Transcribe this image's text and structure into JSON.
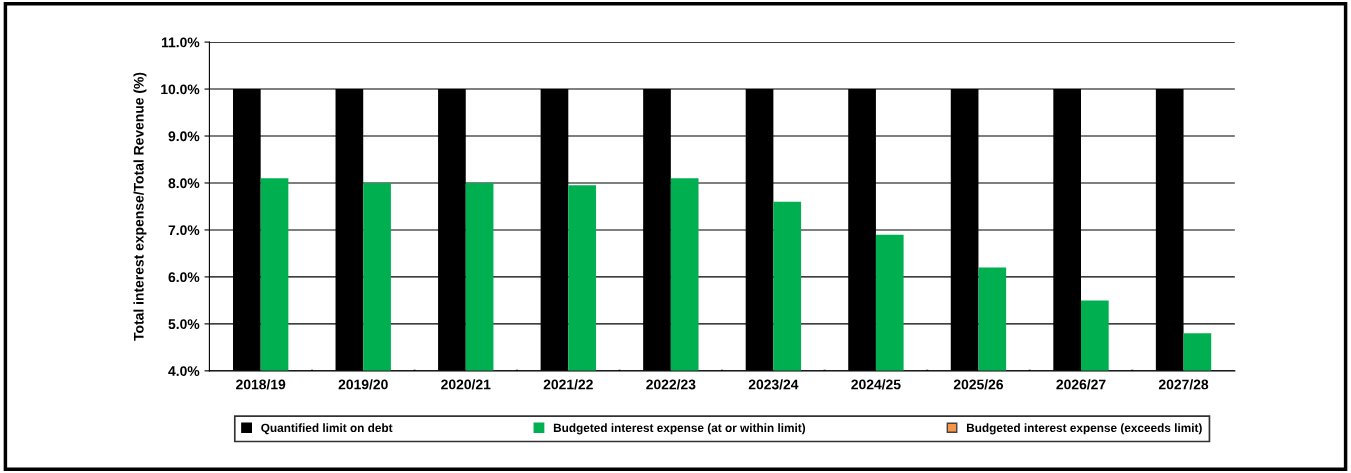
{
  "chart_data": {
    "type": "bar",
    "ylabel": "Total interest expense/Total Revenue (%)",
    "categories": [
      "2018/19",
      "2019/20",
      "2020/21",
      "2021/22",
      "2022/23",
      "2023/24",
      "2024/25",
      "2025/26",
      "2026/27",
      "2027/28"
    ],
    "series": [
      {
        "name": "Quantified limit on debt",
        "color": "#000000",
        "values": [
          10.0,
          10.0,
          10.0,
          10.0,
          10.0,
          10.0,
          10.0,
          10.0,
          10.0,
          10.0
        ]
      },
      {
        "name": "Budgeted interest expense (at or within limit)",
        "color": "#00b050",
        "values": [
          8.1,
          8.0,
          8.0,
          7.95,
          8.1,
          7.6,
          6.9,
          6.2,
          5.5,
          4.8
        ]
      },
      {
        "name": "Budgeted interest expense (exceeds limit)",
        "color": "#f79646",
        "values": [
          null,
          null,
          null,
          null,
          null,
          null,
          null,
          null,
          null,
          null
        ]
      }
    ],
    "ylim": [
      4.0,
      11.0
    ],
    "yticks": [
      {
        "value": 4.0,
        "label": "4.0%"
      },
      {
        "value": 5.0,
        "label": "5.0%"
      },
      {
        "value": 6.0,
        "label": "6.0%"
      },
      {
        "value": 7.0,
        "label": "7.0%"
      },
      {
        "value": 8.0,
        "label": "8.0%"
      },
      {
        "value": 9.0,
        "label": "9.0%"
      },
      {
        "value": 10.0,
        "label": "10.0%"
      },
      {
        "value": 11.0,
        "label": "11.0%"
      }
    ],
    "grid": "y",
    "legend": "bottom"
  }
}
